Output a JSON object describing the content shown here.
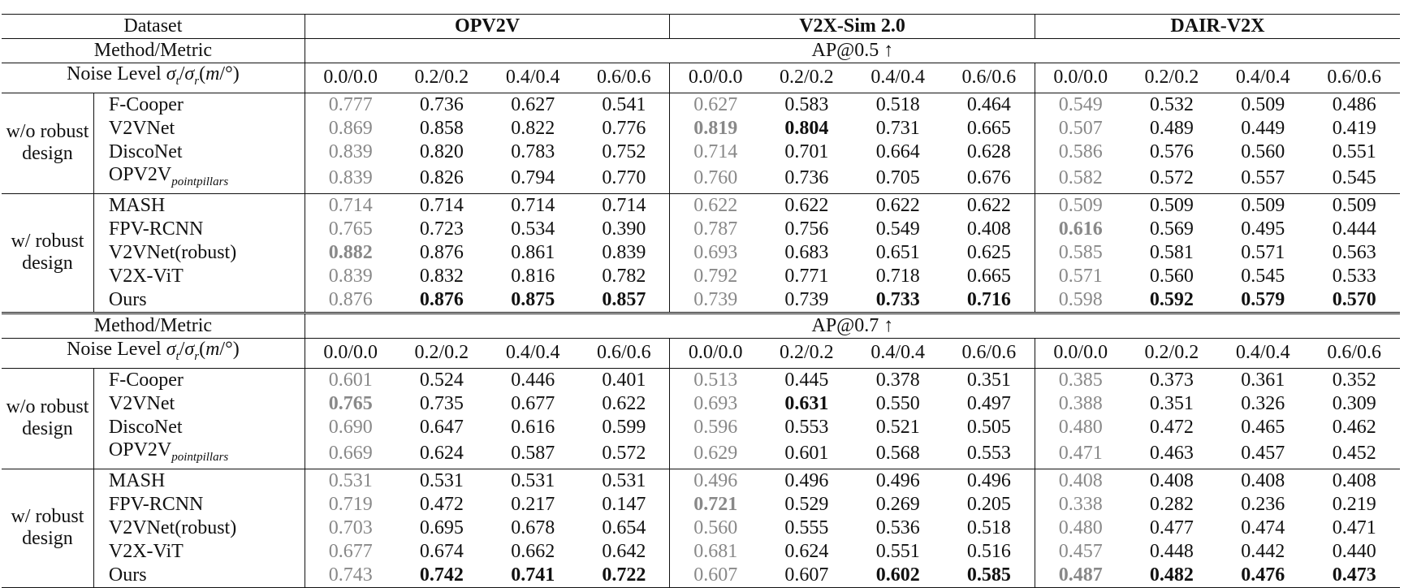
{
  "header": {
    "dataset_label": "Dataset",
    "datasets": [
      "OPV2V",
      "V2X-Sim 2.0",
      "DAIR-V2X"
    ],
    "method_metric_label": "Method/Metric",
    "noise_level_label": "Noise Level σt/σr(m/°)",
    "noise_levels": [
      "0.0/0.0",
      "0.2/0.2",
      "0.4/0.4",
      "0.6/0.6",
      "0.0/0.0",
      "0.2/0.2",
      "0.4/0.4",
      "0.6/0.6",
      "0.0/0.0",
      "0.2/0.2",
      "0.4/0.4",
      "0.6/0.6"
    ]
  },
  "groups": {
    "without": "w/o robust design",
    "with": "w/ robust design"
  },
  "sections": [
    {
      "metric": "AP@0.5 ↑",
      "rows": [
        {
          "method": "F-Cooper",
          "values": [
            "0.777",
            "0.736",
            "0.627",
            "0.541",
            "0.627",
            "0.583",
            "0.518",
            "0.464",
            "0.549",
            "0.532",
            "0.509",
            "0.486"
          ],
          "bold": []
        },
        {
          "method": "V2VNet",
          "values": [
            "0.869",
            "0.858",
            "0.822",
            "0.776",
            "0.819",
            "0.804",
            "0.731",
            "0.665",
            "0.507",
            "0.489",
            "0.449",
            "0.419"
          ],
          "bold": [
            4,
            5
          ]
        },
        {
          "method": "DiscoNet",
          "values": [
            "0.839",
            "0.820",
            "0.783",
            "0.752",
            "0.714",
            "0.701",
            "0.664",
            "0.628",
            "0.586",
            "0.576",
            "0.560",
            "0.551"
          ],
          "bold": []
        },
        {
          "method": "OPV2V",
          "method_sub": "pointpillars",
          "values": [
            "0.839",
            "0.826",
            "0.794",
            "0.770",
            "0.760",
            "0.736",
            "0.705",
            "0.676",
            "0.582",
            "0.572",
            "0.557",
            "0.545"
          ],
          "bold": []
        },
        {
          "method": "MASH",
          "values": [
            "0.714",
            "0.714",
            "0.714",
            "0.714",
            "0.622",
            "0.622",
            "0.622",
            "0.622",
            "0.509",
            "0.509",
            "0.509",
            "0.509"
          ],
          "bold": []
        },
        {
          "method": "FPV-RCNN",
          "values": [
            "0.765",
            "0.723",
            "0.534",
            "0.390",
            "0.787",
            "0.756",
            "0.549",
            "0.408",
            "0.616",
            "0.569",
            "0.495",
            "0.444"
          ],
          "bold": [
            8
          ]
        },
        {
          "method": "V2VNet(robust)",
          "values": [
            "0.882",
            "0.876",
            "0.861",
            "0.839",
            "0.693",
            "0.683",
            "0.651",
            "0.625",
            "0.585",
            "0.581",
            "0.571",
            "0.563"
          ],
          "bold": [
            0
          ]
        },
        {
          "method": "V2X-ViT",
          "values": [
            "0.839",
            "0.832",
            "0.816",
            "0.782",
            "0.792",
            "0.771",
            "0.718",
            "0.665",
            "0.571",
            "0.560",
            "0.545",
            "0.533"
          ],
          "bold": []
        },
        {
          "method": "Ours",
          "values": [
            "0.876",
            "0.876",
            "0.875",
            "0.857",
            "0.739",
            "0.739",
            "0.733",
            "0.716",
            "0.598",
            "0.592",
            "0.579",
            "0.570"
          ],
          "bold": [
            1,
            2,
            3,
            6,
            7,
            9,
            10,
            11
          ]
        }
      ]
    },
    {
      "metric": "AP@0.7 ↑",
      "rows": [
        {
          "method": "F-Cooper",
          "values": [
            "0.601",
            "0.524",
            "0.446",
            "0.401",
            "0.513",
            "0.445",
            "0.378",
            "0.351",
            "0.385",
            "0.373",
            "0.361",
            "0.352"
          ],
          "bold": []
        },
        {
          "method": "V2VNet",
          "values": [
            "0.765",
            "0.735",
            "0.677",
            "0.622",
            "0.693",
            "0.631",
            "0.550",
            "0.497",
            "0.388",
            "0.351",
            "0.326",
            "0.309"
          ],
          "bold": [
            0,
            5
          ]
        },
        {
          "method": "DiscoNet",
          "values": [
            "0.690",
            "0.647",
            "0.616",
            "0.599",
            "0.596",
            "0.553",
            "0.521",
            "0.505",
            "0.480",
            "0.472",
            "0.465",
            "0.462"
          ],
          "bold": []
        },
        {
          "method": "OPV2V",
          "method_sub": "pointpillars",
          "values": [
            "0.669",
            "0.624",
            "0.587",
            "0.572",
            "0.629",
            "0.601",
            "0.568",
            "0.553",
            "0.471",
            "0.463",
            "0.457",
            "0.452"
          ],
          "bold": []
        },
        {
          "method": "MASH",
          "values": [
            "0.531",
            "0.531",
            "0.531",
            "0.531",
            "0.496",
            "0.496",
            "0.496",
            "0.496",
            "0.408",
            "0.408",
            "0.408",
            "0.408"
          ],
          "bold": []
        },
        {
          "method": "FPV-RCNN",
          "values": [
            "0.719",
            "0.472",
            "0.217",
            "0.147",
            "0.721",
            "0.529",
            "0.269",
            "0.205",
            "0.338",
            "0.282",
            "0.236",
            "0.219"
          ],
          "bold": [
            4
          ]
        },
        {
          "method": "V2VNet(robust)",
          "values": [
            "0.703",
            "0.695",
            "0.678",
            "0.654",
            "0.560",
            "0.555",
            "0.536",
            "0.518",
            "0.480",
            "0.477",
            "0.474",
            "0.471"
          ],
          "bold": []
        },
        {
          "method": "V2X-ViT",
          "values": [
            "0.677",
            "0.674",
            "0.662",
            "0.642",
            "0.681",
            "0.624",
            "0.551",
            "0.516",
            "0.457",
            "0.448",
            "0.442",
            "0.440"
          ],
          "bold": []
        },
        {
          "method": "Ours",
          "values": [
            "0.743",
            "0.742",
            "0.741",
            "0.722",
            "0.607",
            "0.607",
            "0.602",
            "0.585",
            "0.487",
            "0.482",
            "0.476",
            "0.473"
          ],
          "bold": [
            1,
            2,
            3,
            6,
            7,
            8,
            9,
            10,
            11
          ]
        }
      ]
    }
  ]
}
